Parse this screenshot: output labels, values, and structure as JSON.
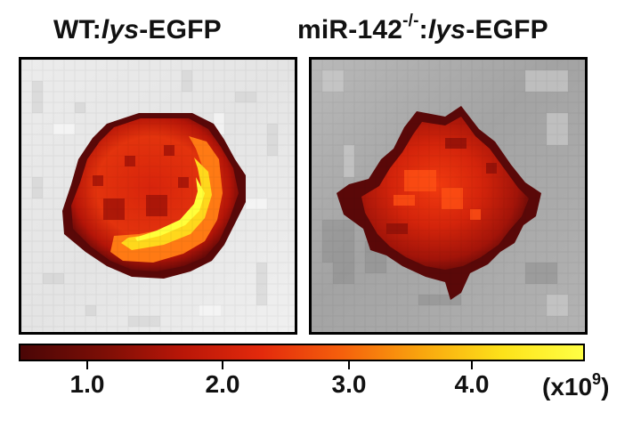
{
  "panels": {
    "left": {
      "title_prefix": "WT:",
      "title_gene": "lys",
      "title_suffix": "-EGFP"
    },
    "right": {
      "title_prefix": "miR-142",
      "title_sup": "-/-",
      "title_mid": ":",
      "title_gene": "lys",
      "title_suffix": "-EGFP"
    }
  },
  "colorbar": {
    "ticks": [
      "1.0",
      "2.0",
      "3.0",
      "4.0"
    ],
    "tick_values": [
      1.0,
      2.0,
      3.0,
      4.0
    ],
    "unit_prefix": "(x10",
    "unit_sup": "9",
    "unit_suffix": ")",
    "colors": [
      "#4a0606",
      "#7a0e06",
      "#b81608",
      "#e32a0c",
      "#f5600c",
      "#f9a60e",
      "#fde21a",
      "#ffff44"
    ]
  },
  "signal_colors": {
    "dark": "#6a0a08",
    "mid": "#c41e0a",
    "bright": "#ff5a12",
    "hot": "#ffef1a"
  },
  "background_colors": {
    "light_gray": "#e9e9e9",
    "mid_gray": "#a6a6a6"
  }
}
